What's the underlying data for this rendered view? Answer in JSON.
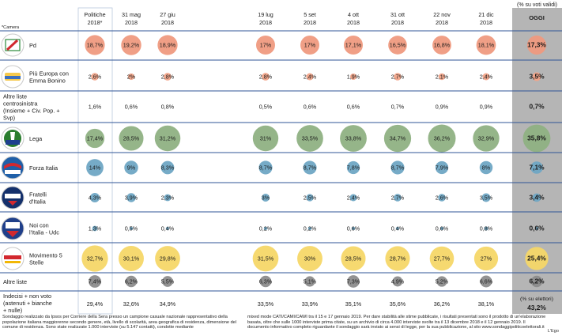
{
  "header": {
    "subtitle": "(% su voti validi)",
    "camera_note": "*Camera",
    "today_label": "OGGI"
  },
  "colors": {
    "pd": "#ef9a80",
    "piu_europa": "#f2a489",
    "lega": "#8fb183",
    "forza_italia": "#6fa6c4",
    "fratelli_italia": "#6fa6c4",
    "noi_italia": "#6fa6c4",
    "m5s": "#f6d768",
    "altre_liste": "#8c8c8c",
    "today_column": "#b5b5b5",
    "row_line": "#2f5597"
  },
  "chart_data": {
    "type": "table",
    "title": "",
    "columns": [
      "Politiche 2018*",
      "31 mag 2018",
      "27 giu 2018",
      "19 lug 2018",
      "5 set 2018",
      "4 ott 2018",
      "31 ott 2018",
      "22 nov 2018",
      "21 dic 2018",
      "OGGI"
    ],
    "rows": [
      {
        "party": "Pd",
        "logo": "pd-logo",
        "color": "#ef9a80",
        "values": [
          18.7,
          19.2,
          18.9,
          17,
          17,
          17.1,
          16.5,
          16.8,
          18.1,
          17.3
        ],
        "labels": [
          "18,7%",
          "19,2%",
          "18,9%",
          "17%",
          "17%",
          "17,1%",
          "16,5%",
          "16,8%",
          "18,1%",
          "17,3%"
        ]
      },
      {
        "party": "Più Europa con Emma Bonino",
        "logo": "piu-europa-logo",
        "color": "#f2a489",
        "values": [
          2.6,
          2,
          2.8,
          2.8,
          2.4,
          1.9,
          2.7,
          2.1,
          2.4,
          3.5
        ],
        "labels": [
          "2,6%",
          "2%",
          "2,8%",
          "2,8%",
          "2,4%",
          "1,9%",
          "2,7%",
          "2,1%",
          "2,4%",
          "3,5%"
        ]
      },
      {
        "party": "Altre liste centrosinistra (Insieme + Civ. Pop. + Svp)",
        "logo": "",
        "color": "",
        "values": [
          1.6,
          0.6,
          0.8,
          0.5,
          0.6,
          0.6,
          0.7,
          0.9,
          0.9,
          0.7
        ],
        "labels": [
          "1,6%",
          "0,6%",
          "0,8%",
          "0,5%",
          "0,6%",
          "0,6%",
          "0,7%",
          "0,9%",
          "0,9%",
          "0,7%"
        ]
      },
      {
        "party": "Lega",
        "logo": "lega-logo",
        "color": "#8fb183",
        "values": [
          17.4,
          28.5,
          31.2,
          31,
          33.5,
          33.8,
          34.7,
          36.2,
          32.9,
          35.8
        ],
        "labels": [
          "17,4%",
          "28,5%",
          "31,2%",
          "31%",
          "33,5%",
          "33,8%",
          "34,7%",
          "36,2%",
          "32,9%",
          "35,8%"
        ]
      },
      {
        "party": "Forza Italia",
        "logo": "forza-italia-logo",
        "color": "#6fa6c4",
        "values": [
          14,
          9,
          8.3,
          8.7,
          8.7,
          7.8,
          8.7,
          7.9,
          8,
          7.1
        ],
        "labels": [
          "14%",
          "9%",
          "8,3%",
          "8,7%",
          "8,7%",
          "7,8%",
          "8,7%",
          "7,9%",
          "8%",
          "7,1%"
        ]
      },
      {
        "party": "Fratelli d'Italia",
        "logo": "fratelli-italia-logo",
        "color": "#6fa6c4",
        "values": [
          4.3,
          3.9,
          2.3,
          3,
          2.5,
          2.4,
          2.7,
          2.6,
          3.5,
          3.4
        ],
        "labels": [
          "4,3%",
          "3,9%",
          "2,3%",
          "3%",
          "2,5%",
          "2,4%",
          "2,7%",
          "2,6%",
          "3,5%",
          "3,4%"
        ]
      },
      {
        "party": "Noi con l'Italia - Udc",
        "logo": "noi-italia-logo",
        "color": "#6fa6c4",
        "values": [
          1.3,
          0.5,
          0.4,
          0.2,
          0.2,
          0.6,
          0.4,
          0.6,
          0.8,
          0.6
        ],
        "labels": [
          "1,3%",
          "0,5%",
          "0,4%",
          "0,2%",
          "0,2%",
          "0,6%",
          "0,4%",
          "0,6%",
          "0,8%",
          "0,6%"
        ]
      },
      {
        "party": "Movimento 5 Stelle",
        "logo": "m5s-logo",
        "color": "#f6d768",
        "values": [
          32.7,
          30.1,
          29.8,
          31.5,
          30,
          28.5,
          28.7,
          27.7,
          27,
          25.4
        ],
        "labels": [
          "32,7%",
          "30,1%",
          "29,8%",
          "31,5%",
          "30%",
          "28,5%",
          "28,7%",
          "27,7%",
          "27%",
          "25,4%"
        ]
      },
      {
        "party": "Altre liste",
        "logo": "",
        "color": "#8c8c8c",
        "values": [
          7.4,
          6.2,
          5.5,
          6.3,
          5.1,
          7.3,
          4.9,
          5.2,
          6.6,
          6.2
        ],
        "labels": [
          "7,4%",
          "6,2%",
          "5,5%",
          "6,3%",
          "5,1%",
          "7,3%",
          "4,9%",
          "5,2%",
          "6,6%",
          "6,2%"
        ]
      }
    ],
    "bottom_row": {
      "party": "Indecisi + non voto (astenuti + bianche + nulle)",
      "labels": [
        "29,4%",
        "32,6%",
        "34,9%",
        "33,5%",
        "33,9%",
        "35,1%",
        "35,6%",
        "36,2%",
        "38,1%",
        "43,2%"
      ],
      "values": [
        29.4,
        32.6,
        34.9,
        33.5,
        33.9,
        35.1,
        35.6,
        36.2,
        38.1,
        43.2
      ],
      "today_note": "(% su elettori)"
    }
  },
  "footnotes": {
    "left": "Sondaggio realizzato da Ipsos per Corriere della Sera presso un campione casuale nazionale rappresentativo della popolazione italiana maggiorenne secondo genere, età, livello di scolarità, area geografica di residenza, dimensione del comune di residenza. Sono state realizzate 1.000 interviste (su 5.147 contatti), condotte mediante",
    "right": "mixed mode CATI/CAMI/CAWI tra il 15 e 17 gennaio 2019. Per dare stabilità alle stime pubblicate, i risultati presentati sono il prodotto di un'elaborazione basata, oltre che sulle 1000 interviste prima citate, su un archivio di circa 4.000 interviste svolte tra il 13 dicembre 2018 e il 12 gennaio 2019. Il documento informativo completo riguardante il sondaggio sarà inviato ai sensi di legge, per la sua pubblicazione, al sito www.sondaggipoliticoelettorali.it",
    "credit": "L'Ego"
  }
}
